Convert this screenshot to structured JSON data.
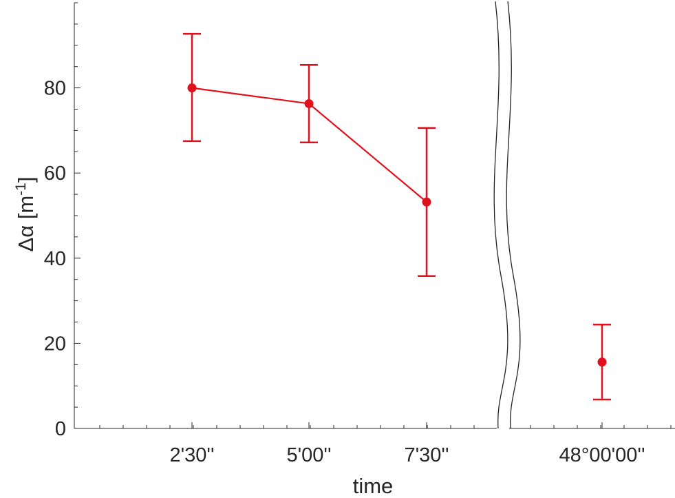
{
  "chart_data": {
    "type": "line",
    "xlabel": "time",
    "ylabel": {
      "symbol": "Δα",
      "unit_open": " [m",
      "unit_exponent": "-1",
      "unit_close": "]"
    },
    "ylim": [
      0,
      100
    ],
    "yticks": [
      0,
      20,
      40,
      60,
      80
    ],
    "x_axis_broken": true,
    "grid": false,
    "colors": {
      "series": "#e0101c",
      "axis": "#262626"
    },
    "categories": [
      "2'30''",
      "5'00''",
      "7'30''",
      "48°00'00''"
    ],
    "series": [
      {
        "points": [
          {
            "x": "2'30''",
            "y": 80.0,
            "err_low": 67.5,
            "err_high": 92.7
          },
          {
            "x": "5'00''",
            "y": 76.3,
            "err_low": 67.2,
            "err_high": 85.4
          },
          {
            "x": "7'30''",
            "y": 53.2,
            "err_low": 35.8,
            "err_high": 70.6
          }
        ],
        "connected": true
      },
      {
        "points": [
          {
            "x": "48°00'00''",
            "y": 15.6,
            "err_low": 6.8,
            "err_high": 24.4
          }
        ],
        "connected": false
      }
    ]
  }
}
